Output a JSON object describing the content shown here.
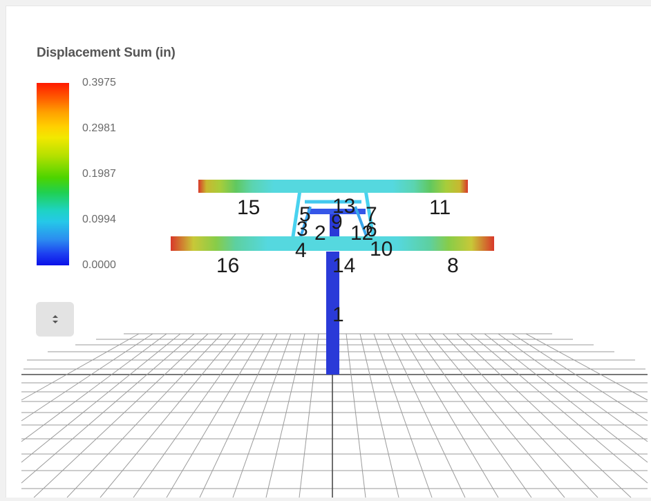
{
  "legend": {
    "title": "Displacement Sum (in)",
    "ticks": [
      "0.3975",
      "0.2981",
      "0.1987",
      "0.0994",
      "0.0000"
    ],
    "colors": [
      "#ff1a00",
      "#ffd000",
      "#4cd400",
      "#25c8e8",
      "#0a10e8"
    ]
  },
  "controls": {
    "toggle_icon": "updown-chevron-icon"
  },
  "node_labels": {
    "n1": "1",
    "n2": "2",
    "n3": "3",
    "n4": "4",
    "n5": "5",
    "n6": "6",
    "n7": "7",
    "n8": "8",
    "n9": "9",
    "n10": "10",
    "n11": "11",
    "n12": "12",
    "n13": "13",
    "n14": "14",
    "n15": "15",
    "n16": "16"
  }
}
